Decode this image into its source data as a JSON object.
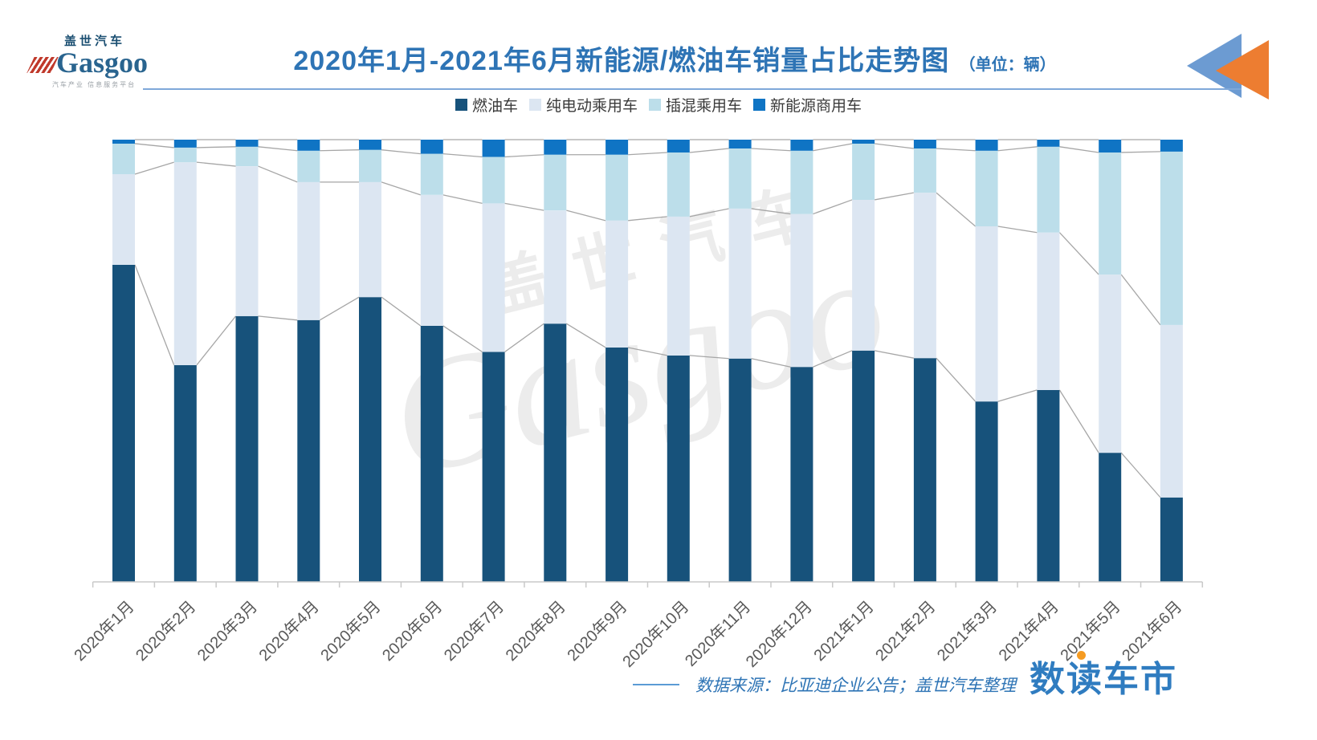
{
  "header": {
    "logo_cn": "盖世汽车",
    "logo_en": "Gasgoo",
    "logo_tagline": "汽车产业 信息服务平台",
    "title": "2020年1月-2021年6月新能源/燃油车销量占比走势图",
    "unit": "（单位：辆）",
    "accent_color": "#2e74b5"
  },
  "watermark": {
    "line1": "盖世汽车",
    "line2": "Gasgoo"
  },
  "chart_data": {
    "type": "bar",
    "stacked": true,
    "percent_stacked": true,
    "title": "2020年1月-2021年6月新能源/燃油车销量占比走势图",
    "unit_label": "（单位：辆）",
    "categories": [
      "2020年1月",
      "2020年2月",
      "2020年3月",
      "2020年4月",
      "2020年5月",
      "2020年6月",
      "2020年7月",
      "2020年8月",
      "2020年9月",
      "2020年10月",
      "2020年11月",
      "2020年12月",
      "2021年1月",
      "2021年2月",
      "2021年3月",
      "2021年4月",
      "2021年5月",
      "2021年6月"
    ],
    "series": [
      {
        "name": "燃油车",
        "color": "#17527b",
        "values": [
          71.7,
          49.0,
          60.1,
          59.2,
          64.4,
          57.9,
          52.0,
          58.4,
          53.0,
          51.2,
          50.5,
          48.6,
          52.3,
          50.6,
          40.8,
          43.4,
          29.2,
          19.1
        ]
      },
      {
        "name": "纯电动乘用车",
        "color": "#dce6f2",
        "values": [
          20.5,
          45.9,
          33.9,
          31.2,
          26.0,
          29.6,
          33.6,
          25.6,
          28.7,
          31.4,
          33.9,
          34.6,
          34.1,
          37.4,
          39.6,
          35.6,
          40.3,
          39.0
        ]
      },
      {
        "name": "插混乘用车",
        "color": "#bcdeea",
        "values": [
          6.9,
          3.3,
          4.4,
          7.1,
          7.3,
          9.3,
          10.5,
          12.6,
          14.9,
          14.5,
          13.6,
          14.3,
          12.7,
          10.0,
          17.1,
          19.4,
          27.6,
          39.2
        ]
      },
      {
        "name": "新能源商用车",
        "color": "#0f74c4",
        "values": [
          0.9,
          1.8,
          1.6,
          2.5,
          2.3,
          3.2,
          3.9,
          3.4,
          3.4,
          2.9,
          2.0,
          2.5,
          0.9,
          2.0,
          2.5,
          1.6,
          2.9,
          2.7
        ]
      }
    ],
    "ylim": [
      0,
      100
    ],
    "grid": false,
    "legend_position": "top",
    "connector_line_color": "#a6a6a6",
    "axis_color": "#c9c9c9",
    "tick_label_color": "#595959"
  },
  "footer": {
    "source_text": "数据来源：比亚迪企业公告；盖世汽车整理",
    "brand": "数读车市"
  }
}
